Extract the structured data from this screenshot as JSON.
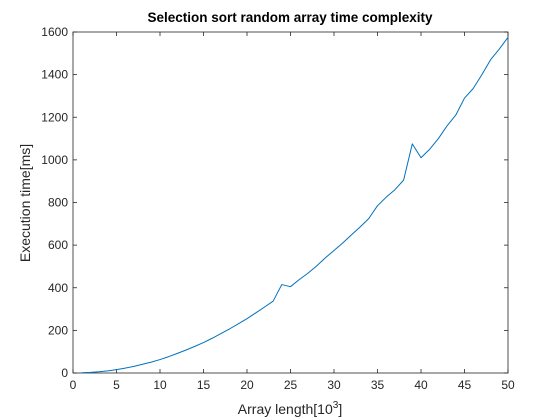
{
  "chart_data": {
    "type": "line",
    "title": "Selection sort random array time complexity",
    "xlabel": "Array length[10",
    "xlabel_superscript": "3",
    "xlabel_suffix": "]",
    "ylabel": "Execution time[ms]",
    "xlim": [
      0,
      50
    ],
    "ylim": [
      0,
      1600
    ],
    "xticks": [
      0,
      5,
      10,
      15,
      20,
      25,
      30,
      35,
      40,
      45,
      50
    ],
    "yticks": [
      0,
      200,
      400,
      600,
      800,
      1000,
      1200,
      1400,
      1600
    ],
    "grid": false,
    "series": [
      {
        "color": "#0072BD",
        "x": [
          1,
          2,
          3,
          4,
          5,
          6,
          7,
          8,
          9,
          10,
          11,
          12,
          13,
          14,
          15,
          16,
          17,
          18,
          19,
          20,
          21,
          22,
          23,
          24,
          25,
          26,
          27,
          28,
          29,
          30,
          31,
          32,
          33,
          34,
          35,
          36,
          37,
          38,
          39,
          40,
          41,
          42,
          43,
          44,
          45,
          46,
          47,
          48,
          49,
          50
        ],
        "values": [
          1,
          3,
          6,
          10,
          16,
          23,
          31,
          41,
          51,
          63,
          77,
          92,
          108,
          125,
          143,
          163,
          185,
          207,
          231,
          255,
          282,
          309,
          337,
          415,
          405,
          438,
          468,
          502,
          540,
          575,
          610,
          648,
          685,
          725,
          785,
          825,
          860,
          905,
          1075,
          1010,
          1050,
          1100,
          1160,
          1210,
          1290,
          1335,
          1400,
          1470,
          1520,
          1575
        ]
      }
    ]
  }
}
